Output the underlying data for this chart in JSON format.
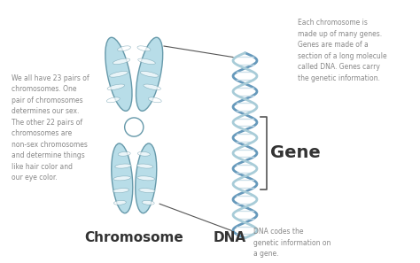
{
  "background_color": "#ffffff",
  "chromosome_color_fill": "#b8dde8",
  "chromosome_color_edge": "#6699aa",
  "chromosome_color_fill2": "#cce8f0",
  "dna_color_strand1": "#a8ccd8",
  "dna_color_strand2": "#6699bb",
  "dna_rung_color": "#c8dde8",
  "text_chromosome_label": "Chromosome",
  "text_dna_label": "DNA",
  "text_gene_label": "Gene",
  "text_left": "We all have 23 pairs of\nchromosomes. One\npair of chromosomes\ndetermines our sex.\nThe other 22 pairs of\nchromosomes are\nnon-sex chromosomes\nand determine things\nlike hair color and\nour eye color.",
  "text_right": "Each chromosome is\nmade up of many genes.\nGenes are made of a\nsection of a long molecule\ncalled DNA. Genes carry\nthe genetic information.",
  "text_dna_desc": "DNA codes the\ngenetic information on\na gene.",
  "label_fontsize": 11,
  "small_fontsize": 5.5,
  "gene_fontsize": 14,
  "label_color": "#333333",
  "text_color": "#888888"
}
